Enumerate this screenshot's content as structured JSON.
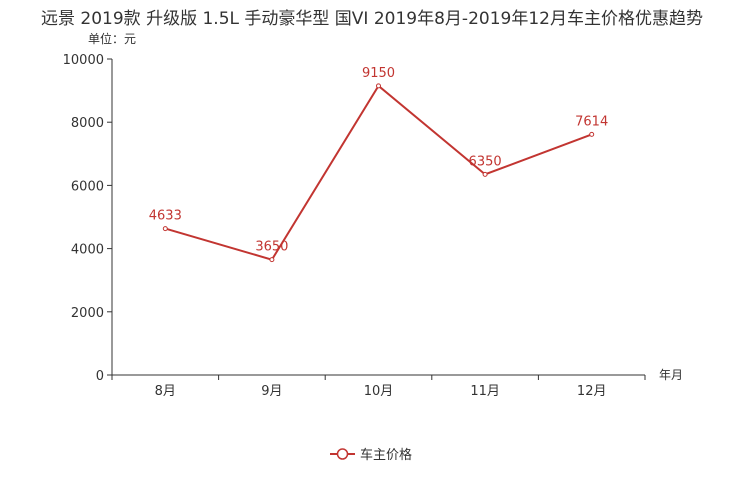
{
  "chart_data": {
    "type": "line",
    "title": "远景 2019款 升级版 1.5L 手动豪华型 国VI 2019年8月-2019年12月车主价格优惠趋势",
    "ylabel": "单位：元",
    "xlabel": "年月",
    "categories": [
      "8月",
      "9月",
      "10月",
      "11月",
      "12月"
    ],
    "ylim": [
      0,
      10000
    ],
    "yticks": [
      0,
      2000,
      4000,
      6000,
      8000,
      10000
    ],
    "series": [
      {
        "name": "车主价格",
        "values": [
          4633,
          3650,
          9150,
          6350,
          7614
        ],
        "color": "#c23531"
      }
    ],
    "legend": "bottom-center",
    "grid": false
  }
}
